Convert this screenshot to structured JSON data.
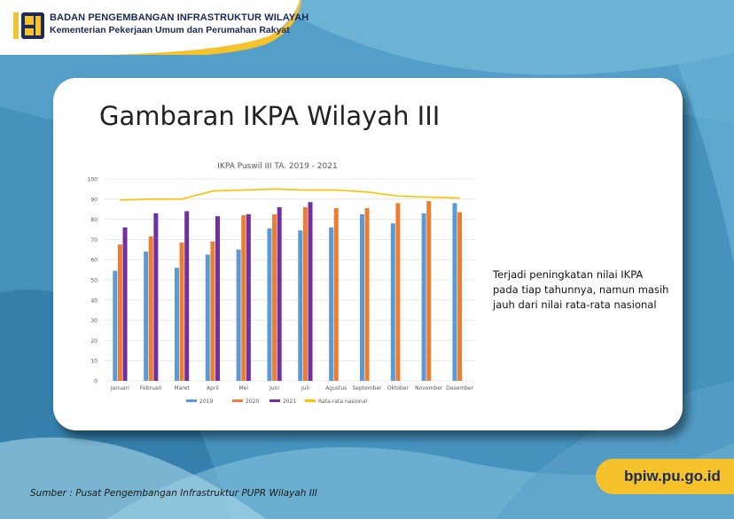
{
  "header": {
    "org_name": "BADAN PENGEMBANGAN INFRASTRUKTUR WILAYAH",
    "ministry": "Kementerian Pekerjaan Umum dan Perumahan Rakyat"
  },
  "slide": {
    "title": "Gambaran IKPA Wilayah III",
    "note_lines": [
      "Terjadi peningkatan nilai IKPA",
      "pada tiap tahunnya, namun masih",
      "jauh dari nilai rata-rata nasional"
    ]
  },
  "footer": {
    "source": "Sumber : Pusat Pengembangan Infrastruktur PUPR Wilayah III",
    "url": "bpiw.pu.go.id"
  },
  "colors": {
    "y2019": "#5b9bd5",
    "y2020": "#ed7d31",
    "y2021": "#7030a0",
    "national": "#ffc000",
    "accent": "#f6c22b",
    "navy": "#1d2b57"
  },
  "chart_data": {
    "type": "bar",
    "title": "IKPA Puswil III TA. 2019 - 2021",
    "categories": [
      "Januari",
      "Februari",
      "Maret",
      "April",
      "Mei",
      "Juni",
      "Juli",
      "Agustus",
      "September",
      "Oktober",
      "November",
      "Desember"
    ],
    "series": [
      {
        "name": "2019",
        "type": "bar",
        "values": [
          54.5,
          64,
          56,
          62.5,
          65,
          75.5,
          74.5,
          76,
          82.5,
          78,
          83,
          88
        ]
      },
      {
        "name": "2020",
        "type": "bar",
        "values": [
          67.5,
          71.5,
          68.5,
          69,
          82,
          82.5,
          86,
          85.5,
          85.5,
          88,
          89,
          83.5
        ]
      },
      {
        "name": "2021",
        "type": "bar",
        "values": [
          76,
          83,
          84,
          81.5,
          82.5,
          86,
          88.5,
          null,
          null,
          null,
          null,
          null
        ]
      },
      {
        "name": "Rata-rata nasional",
        "type": "line",
        "values": [
          89.5,
          90,
          90,
          94,
          94.5,
          95,
          94.5,
          94.5,
          93.5,
          91.5,
          91,
          90.5
        ]
      }
    ],
    "ylim": [
      0,
      100
    ],
    "yticks": [
      0,
      10,
      20,
      30,
      40,
      50,
      60,
      70,
      80,
      90,
      100
    ],
    "grid": true,
    "legend": "bottom"
  }
}
